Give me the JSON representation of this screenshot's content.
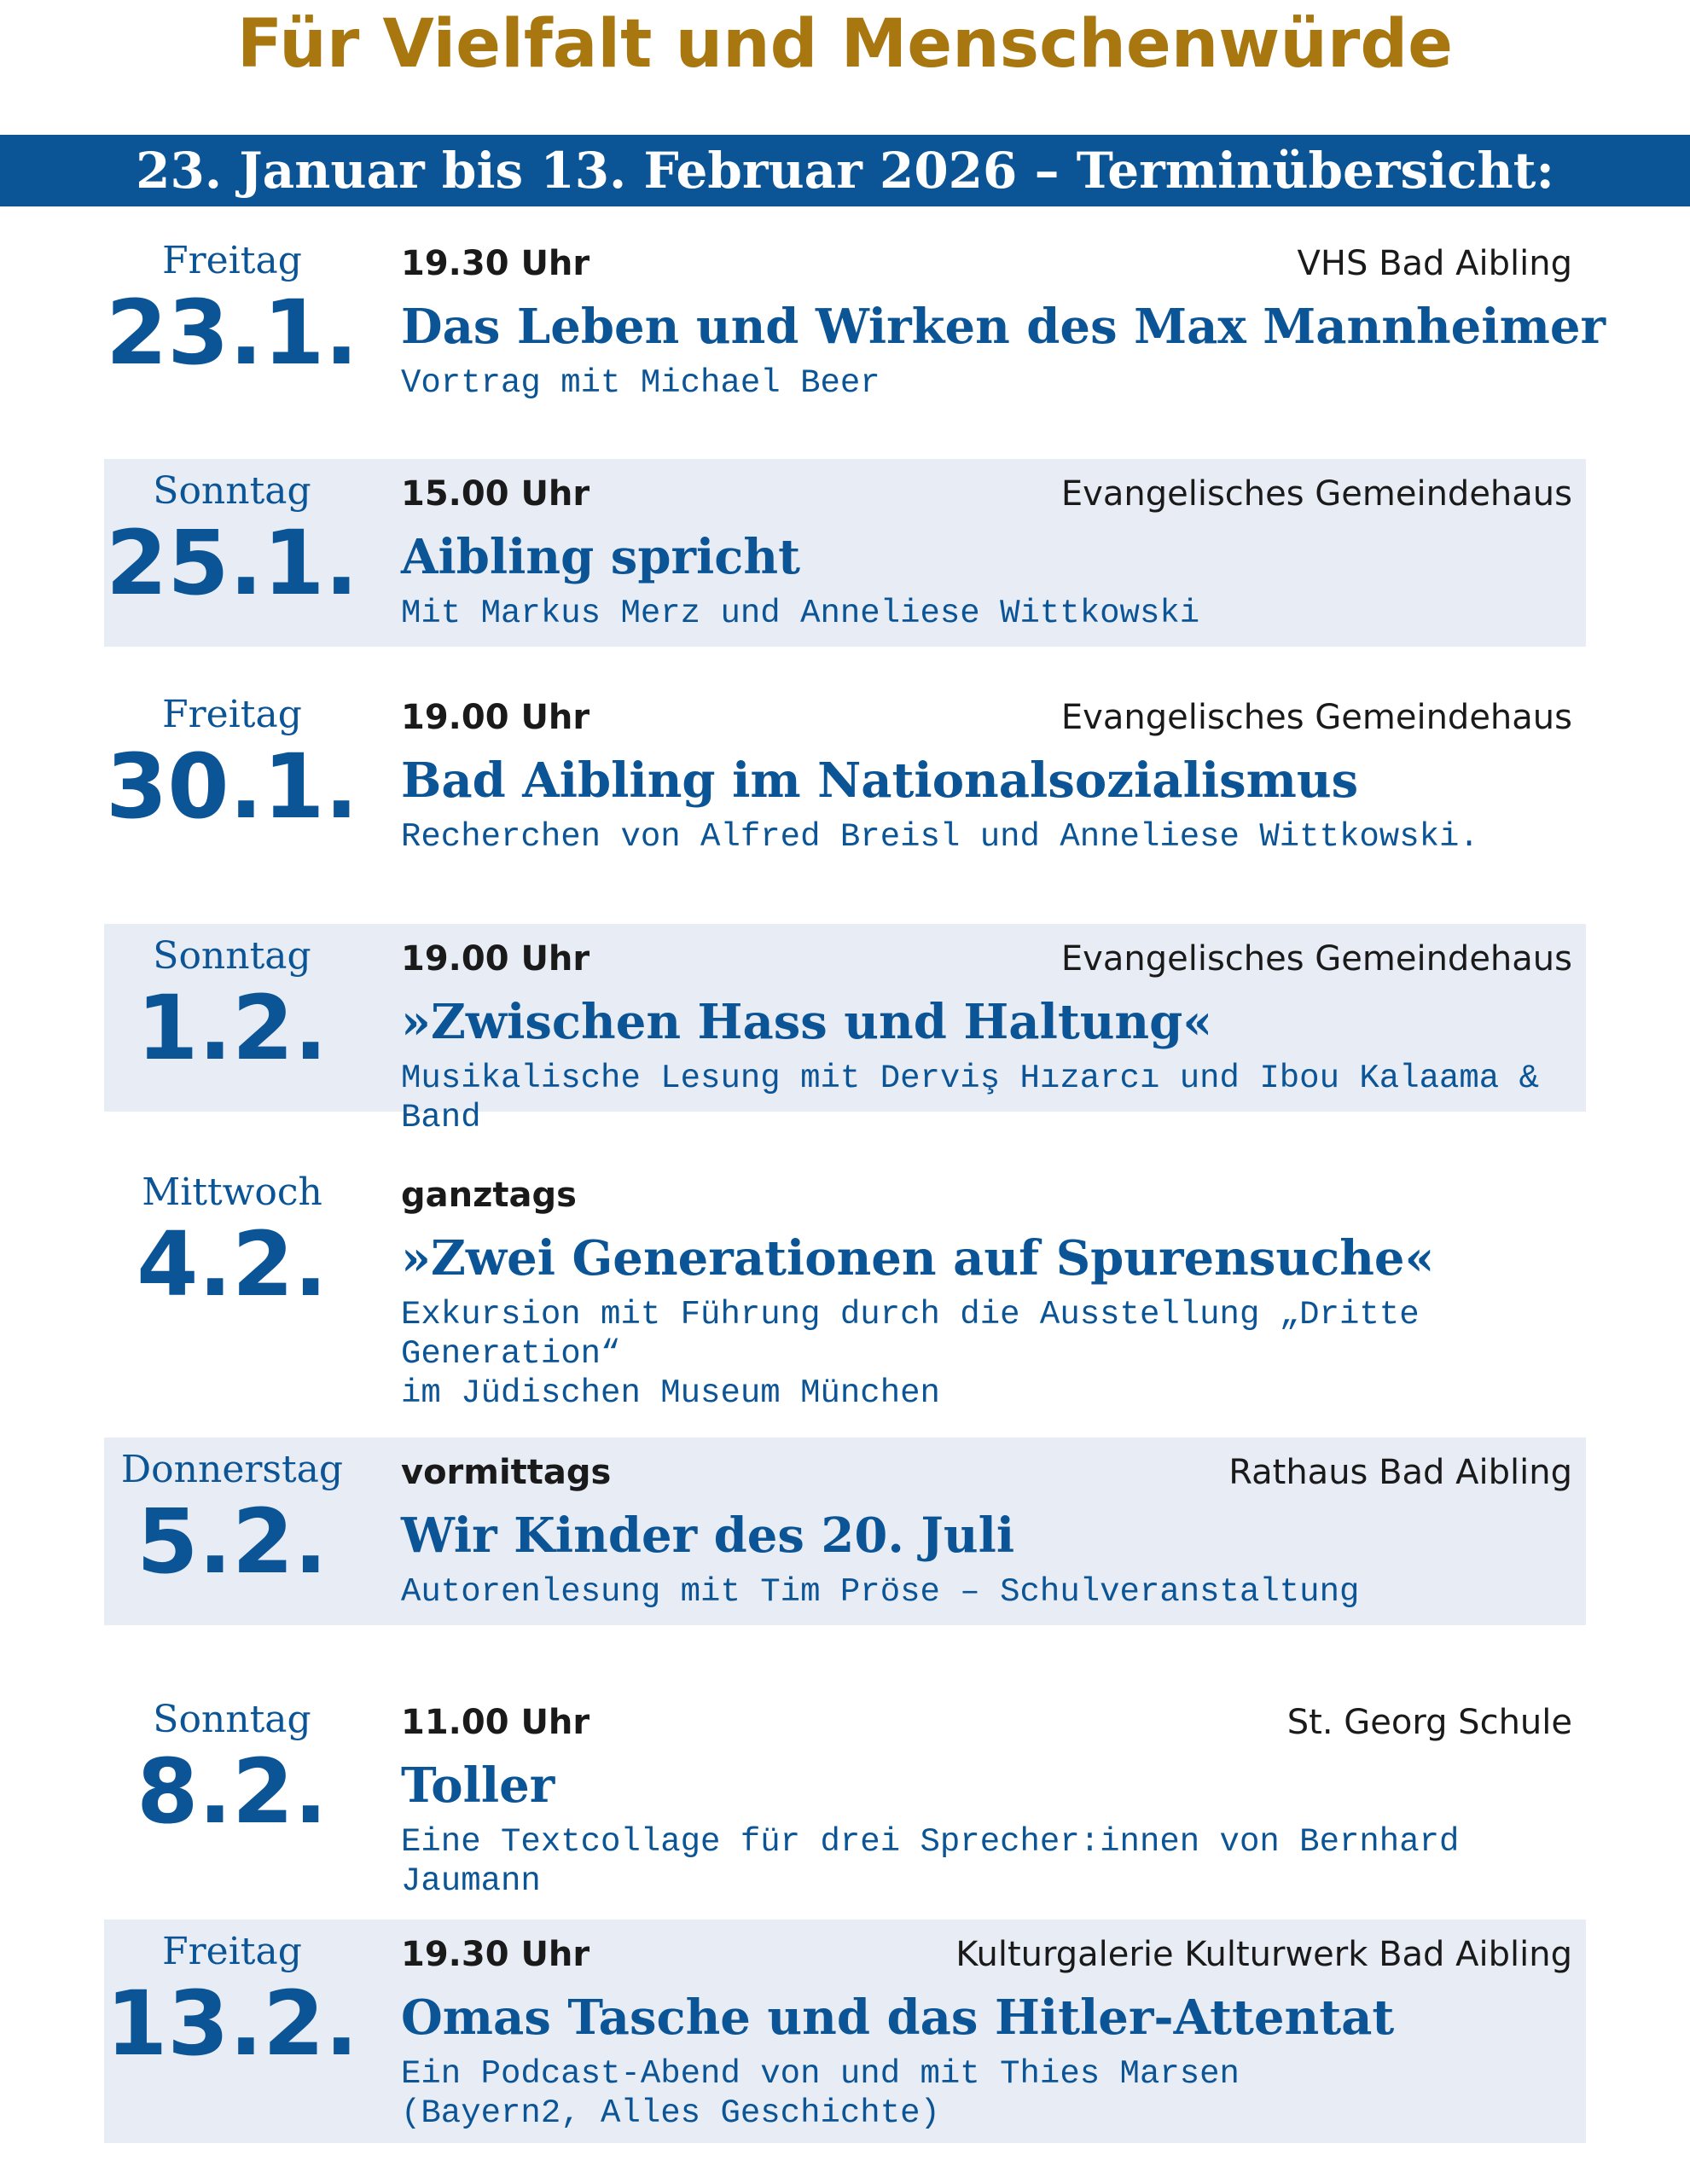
{
  "header": {
    "title": "Für Vielfalt und Menschenwürde",
    "banner": "23. Januar bis 13. Februar 2026 – Terminübersicht:"
  },
  "colors": {
    "title_gold": "#a8770f",
    "brand_blue": "#0b5496",
    "row_shade": "#e7ecf5"
  },
  "events": [
    {
      "weekday": "Freitag",
      "date": "23.1.",
      "time": "19.30 Uhr",
      "venue": "VHS Bad Aibling",
      "title": "Das Leben und Wirken des Max Mannheimer",
      "subtitle": "Vortrag mit Michael Beer"
    },
    {
      "weekday": "Sonntag",
      "date": "25.1.",
      "time": "15.00 Uhr",
      "venue": "Evangelisches Gemeindehaus",
      "title": "Aibling spricht",
      "subtitle": "Mit Markus Merz und Anneliese Wittkowski"
    },
    {
      "weekday": "Freitag",
      "date": "30.1.",
      "time": "19.00 Uhr",
      "venue": "Evangelisches Gemeindehaus",
      "title": "Bad Aibling im Nationalsozialismus",
      "subtitle": "Recherchen von Alfred Breisl und Anneliese Wittkowski."
    },
    {
      "weekday": "Sonntag",
      "date": "1.2.",
      "time": "19.00 Uhr",
      "venue": "Evangelisches Gemeindehaus",
      "title": "»Zwischen Hass und Haltung«",
      "subtitle": "Musikalische Lesung mit Derviş Hızarcı und Ibou Kalaama & Band"
    },
    {
      "weekday": "Mittwoch",
      "date": "4.2.",
      "time": "ganztags",
      "venue": "",
      "title": "»Zwei Generationen auf Spurensuche«",
      "subtitle": "Exkursion mit Führung durch die Ausstellung „Dritte Generation“\nim Jüdischen Museum München"
    },
    {
      "weekday": "Donnerstag",
      "date": "5.2.",
      "time": "vormittags",
      "venue": "Rathaus Bad Aibling",
      "title": "Wir Kinder des 20. Juli",
      "subtitle": "Autorenlesung mit Tim Pröse – Schulveranstaltung"
    },
    {
      "weekday": "Sonntag",
      "date": "8.2.",
      "time": "11.00 Uhr",
      "venue": "St. Georg Schule",
      "title": "Toller",
      "subtitle": "Eine Textcollage für drei Sprecher:innen von Bernhard Jaumann"
    },
    {
      "weekday": "Freitag",
      "date": "13.2.",
      "time": "19.30 Uhr",
      "venue": "Kulturgalerie Kulturwerk Bad Aibling",
      "title": "Omas Tasche und das Hitler-Attentat",
      "subtitle": "Ein Podcast-Abend von und mit Thies Marsen\n(Bayern2, Alles Geschichte)"
    }
  ]
}
